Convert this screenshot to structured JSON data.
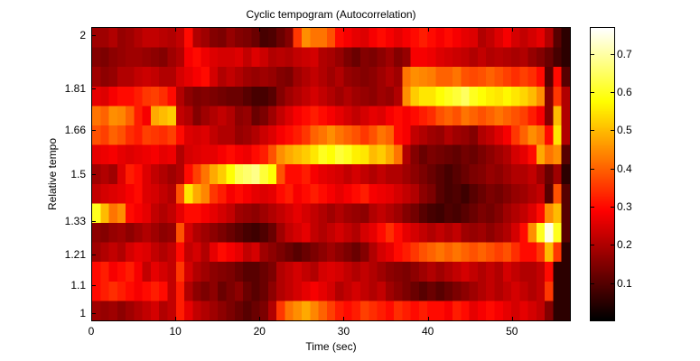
{
  "chart_data": {
    "type": "heatmap",
    "title": "Cyclic tempogram (Autocorrelation)",
    "xlabel": "Time (sec)",
    "ylabel": "Relative tempo",
    "xlim": [
      0,
      57
    ],
    "x_ticks": [
      0,
      10,
      20,
      30,
      40,
      50
    ],
    "y_ticks": [
      "1",
      "1.1",
      "1.21",
      "1.33",
      "1.5",
      "1.66",
      "1.81",
      "2"
    ],
    "y_tick_values": [
      1.0,
      1.1,
      1.21,
      1.33,
      1.5,
      1.66,
      1.81,
      2.0
    ],
    "ylim": [
      0.97,
      2.03
    ],
    "colormap": "hot",
    "colorbar": {
      "range": [
        0,
        0.77
      ],
      "ticks": [
        "0.1",
        "0.2",
        "0.3",
        "0.4",
        "0.5",
        "0.6",
        "0.7"
      ],
      "tick_values": [
        0.1,
        0.2,
        0.3,
        0.4,
        0.5,
        0.6,
        0.7
      ]
    },
    "grid": false,
    "n_rows": 15,
    "time_bin_sec": 1,
    "rows_top_to_bottom": [
      [
        0.18,
        0.18,
        0.2,
        0.17,
        0.18,
        0.2,
        0.22,
        0.22,
        0.21,
        0.2,
        0.22,
        0.3,
        0.2,
        0.18,
        0.15,
        0.14,
        0.17,
        0.15,
        0.14,
        0.12,
        0.08,
        0.09,
        0.12,
        0.15,
        0.35,
        0.45,
        0.42,
        0.42,
        0.38,
        0.3,
        0.28,
        0.26,
        0.25,
        0.28,
        0.3,
        0.28,
        0.26,
        0.28,
        0.3,
        0.32,
        0.3,
        0.28,
        0.3,
        0.28,
        0.26,
        0.25,
        0.2,
        0.22,
        0.25,
        0.28,
        0.24,
        0.22,
        0.24,
        0.26,
        0.2,
        0.1,
        0.05
      ],
      [
        0.15,
        0.14,
        0.16,
        0.17,
        0.18,
        0.18,
        0.17,
        0.16,
        0.15,
        0.18,
        0.2,
        0.28,
        0.3,
        0.27,
        0.25,
        0.24,
        0.24,
        0.25,
        0.22,
        0.25,
        0.23,
        0.2,
        0.21,
        0.2,
        0.22,
        0.23,
        0.24,
        0.2,
        0.19,
        0.17,
        0.14,
        0.12,
        0.15,
        0.14,
        0.16,
        0.18,
        0.15,
        0.17,
        0.28,
        0.28,
        0.27,
        0.25,
        0.24,
        0.23,
        0.22,
        0.2,
        0.22,
        0.2,
        0.21,
        0.2,
        0.19,
        0.2,
        0.17,
        0.15,
        0.12,
        0.08,
        0.05
      ],
      [
        0.18,
        0.16,
        0.17,
        0.2,
        0.2,
        0.22,
        0.23,
        0.22,
        0.2,
        0.2,
        0.24,
        0.26,
        0.28,
        0.3,
        0.24,
        0.2,
        0.22,
        0.2,
        0.18,
        0.17,
        0.18,
        0.17,
        0.15,
        0.14,
        0.18,
        0.2,
        0.22,
        0.2,
        0.18,
        0.2,
        0.17,
        0.16,
        0.15,
        0.16,
        0.18,
        0.2,
        0.18,
        0.42,
        0.45,
        0.44,
        0.43,
        0.4,
        0.4,
        0.42,
        0.38,
        0.37,
        0.38,
        0.4,
        0.38,
        0.36,
        0.34,
        0.36,
        0.34,
        0.3,
        0.1,
        0.3,
        0.1
      ],
      [
        0.26,
        0.25,
        0.28,
        0.3,
        0.3,
        0.32,
        0.35,
        0.36,
        0.34,
        0.3,
        0.2,
        0.16,
        0.14,
        0.15,
        0.14,
        0.13,
        0.12,
        0.12,
        0.1,
        0.08,
        0.08,
        0.1,
        0.15,
        0.18,
        0.2,
        0.22,
        0.24,
        0.22,
        0.2,
        0.18,
        0.2,
        0.18,
        0.17,
        0.16,
        0.18,
        0.17,
        0.2,
        0.45,
        0.52,
        0.55,
        0.55,
        0.58,
        0.6,
        0.62,
        0.65,
        0.6,
        0.58,
        0.56,
        0.55,
        0.57,
        0.55,
        0.53,
        0.5,
        0.45,
        0.15,
        0.35,
        0.2
      ],
      [
        0.42,
        0.4,
        0.45,
        0.44,
        0.4,
        0.32,
        0.28,
        0.48,
        0.5,
        0.52,
        0.22,
        0.2,
        0.15,
        0.18,
        0.2,
        0.22,
        0.2,
        0.16,
        0.17,
        0.12,
        0.14,
        0.18,
        0.22,
        0.25,
        0.28,
        0.3,
        0.32,
        0.3,
        0.28,
        0.26,
        0.24,
        0.22,
        0.24,
        0.26,
        0.25,
        0.28,
        0.3,
        0.28,
        0.3,
        0.32,
        0.34,
        0.38,
        0.4,
        0.38,
        0.42,
        0.4,
        0.38,
        0.4,
        0.42,
        0.4,
        0.38,
        0.36,
        0.32,
        0.28,
        0.15,
        0.5,
        0.2
      ],
      [
        0.38,
        0.36,
        0.4,
        0.38,
        0.34,
        0.32,
        0.36,
        0.35,
        0.34,
        0.36,
        0.3,
        0.25,
        0.24,
        0.25,
        0.22,
        0.2,
        0.2,
        0.17,
        0.18,
        0.2,
        0.23,
        0.25,
        0.28,
        0.3,
        0.32,
        0.35,
        0.4,
        0.42,
        0.45,
        0.42,
        0.4,
        0.38,
        0.35,
        0.38,
        0.42,
        0.4,
        0.3,
        0.28,
        0.22,
        0.2,
        0.18,
        0.17,
        0.2,
        0.18,
        0.17,
        0.15,
        0.2,
        0.22,
        0.25,
        0.28,
        0.35,
        0.4,
        0.45,
        0.42,
        0.3,
        0.55,
        0.2
      ],
      [
        0.26,
        0.27,
        0.28,
        0.26,
        0.25,
        0.26,
        0.27,
        0.28,
        0.26,
        0.27,
        0.2,
        0.24,
        0.25,
        0.26,
        0.26,
        0.28,
        0.3,
        0.28,
        0.27,
        0.3,
        0.32,
        0.38,
        0.45,
        0.48,
        0.5,
        0.52,
        0.55,
        0.6,
        0.58,
        0.62,
        0.6,
        0.56,
        0.55,
        0.5,
        0.52,
        0.48,
        0.42,
        0.2,
        0.15,
        0.12,
        0.14,
        0.13,
        0.12,
        0.11,
        0.13,
        0.12,
        0.14,
        0.16,
        0.18,
        0.2,
        0.24,
        0.26,
        0.3,
        0.48,
        0.42,
        0.45,
        0.1
      ],
      [
        0.18,
        0.2,
        0.18,
        0.25,
        0.32,
        0.3,
        0.25,
        0.22,
        0.2,
        0.18,
        0.2,
        0.3,
        0.36,
        0.42,
        0.48,
        0.52,
        0.58,
        0.64,
        0.66,
        0.68,
        0.62,
        0.58,
        0.38,
        0.3,
        0.3,
        0.32,
        0.28,
        0.26,
        0.25,
        0.24,
        0.22,
        0.24,
        0.22,
        0.2,
        0.22,
        0.2,
        0.2,
        0.18,
        0.16,
        0.14,
        0.12,
        0.1,
        0.08,
        0.1,
        0.12,
        0.14,
        0.15,
        0.17,
        0.16,
        0.18,
        0.2,
        0.2,
        0.22,
        0.18,
        0.12,
        0.18,
        0.05
      ],
      [
        0.22,
        0.24,
        0.25,
        0.26,
        0.28,
        0.3,
        0.25,
        0.24,
        0.22,
        0.2,
        0.38,
        0.55,
        0.48,
        0.44,
        0.35,
        0.32,
        0.28,
        0.3,
        0.28,
        0.26,
        0.25,
        0.26,
        0.3,
        0.32,
        0.28,
        0.3,
        0.32,
        0.3,
        0.28,
        0.26,
        0.28,
        0.3,
        0.32,
        0.28,
        0.27,
        0.26,
        0.24,
        0.22,
        0.2,
        0.16,
        0.14,
        0.1,
        0.08,
        0.09,
        0.07,
        0.1,
        0.12,
        0.14,
        0.13,
        0.15,
        0.17,
        0.18,
        0.2,
        0.22,
        0.1,
        0.38,
        0.1
      ],
      [
        0.6,
        0.5,
        0.42,
        0.45,
        0.3,
        0.28,
        0.26,
        0.22,
        0.2,
        0.22,
        0.26,
        0.3,
        0.3,
        0.28,
        0.26,
        0.24,
        0.22,
        0.18,
        0.17,
        0.16,
        0.18,
        0.2,
        0.22,
        0.24,
        0.26,
        0.24,
        0.22,
        0.2,
        0.18,
        0.2,
        0.18,
        0.17,
        0.16,
        0.2,
        0.22,
        0.2,
        0.18,
        0.15,
        0.13,
        0.1,
        0.08,
        0.07,
        0.09,
        0.08,
        0.1,
        0.12,
        0.14,
        0.13,
        0.15,
        0.18,
        0.2,
        0.22,
        0.25,
        0.3,
        0.45,
        0.5,
        0.1
      ],
      [
        0.16,
        0.15,
        0.17,
        0.18,
        0.16,
        0.18,
        0.2,
        0.18,
        0.16,
        0.17,
        0.38,
        0.24,
        0.2,
        0.18,
        0.16,
        0.14,
        0.12,
        0.1,
        0.08,
        0.07,
        0.09,
        0.12,
        0.18,
        0.22,
        0.24,
        0.26,
        0.22,
        0.2,
        0.22,
        0.24,
        0.22,
        0.2,
        0.24,
        0.26,
        0.3,
        0.34,
        0.3,
        0.26,
        0.24,
        0.22,
        0.2,
        0.22,
        0.2,
        0.22,
        0.18,
        0.17,
        0.18,
        0.16,
        0.18,
        0.2,
        0.24,
        0.3,
        0.45,
        0.6,
        0.75,
        0.6,
        0.1
      ],
      [
        0.18,
        0.2,
        0.22,
        0.2,
        0.24,
        0.26,
        0.25,
        0.22,
        0.2,
        0.22,
        0.3,
        0.22,
        0.24,
        0.2,
        0.26,
        0.3,
        0.28,
        0.26,
        0.22,
        0.24,
        0.18,
        0.16,
        0.14,
        0.12,
        0.1,
        0.12,
        0.14,
        0.16,
        0.18,
        0.16,
        0.14,
        0.12,
        0.15,
        0.2,
        0.24,
        0.26,
        0.3,
        0.32,
        0.35,
        0.38,
        0.4,
        0.42,
        0.4,
        0.42,
        0.4,
        0.38,
        0.4,
        0.38,
        0.36,
        0.38,
        0.34,
        0.3,
        0.3,
        0.35,
        0.5,
        0.35,
        0.05
      ],
      [
        0.3,
        0.32,
        0.28,
        0.3,
        0.32,
        0.28,
        0.22,
        0.26,
        0.24,
        0.22,
        0.35,
        0.24,
        0.2,
        0.18,
        0.16,
        0.15,
        0.14,
        0.12,
        0.1,
        0.1,
        0.12,
        0.14,
        0.2,
        0.22,
        0.24,
        0.22,
        0.2,
        0.24,
        0.25,
        0.24,
        0.22,
        0.2,
        0.22,
        0.2,
        0.18,
        0.16,
        0.15,
        0.14,
        0.16,
        0.18,
        0.2,
        0.18,
        0.2,
        0.22,
        0.24,
        0.22,
        0.2,
        0.22,
        0.2,
        0.24,
        0.22,
        0.2,
        0.2,
        0.22,
        0.3,
        0.05,
        0.05
      ],
      [
        0.3,
        0.32,
        0.34,
        0.32,
        0.3,
        0.28,
        0.3,
        0.32,
        0.3,
        0.22,
        0.32,
        0.2,
        0.16,
        0.14,
        0.16,
        0.12,
        0.14,
        0.16,
        0.12,
        0.1,
        0.12,
        0.16,
        0.2,
        0.22,
        0.24,
        0.26,
        0.28,
        0.26,
        0.24,
        0.2,
        0.22,
        0.24,
        0.22,
        0.2,
        0.22,
        0.18,
        0.16,
        0.14,
        0.12,
        0.1,
        0.12,
        0.1,
        0.12,
        0.14,
        0.16,
        0.18,
        0.2,
        0.22,
        0.2,
        0.22,
        0.24,
        0.22,
        0.2,
        0.22,
        0.35,
        0.05,
        0.05
      ],
      [
        0.18,
        0.17,
        0.18,
        0.16,
        0.18,
        0.2,
        0.22,
        0.24,
        0.2,
        0.22,
        0.32,
        0.26,
        0.22,
        0.2,
        0.18,
        0.16,
        0.14,
        0.12,
        0.1,
        0.12,
        0.14,
        0.2,
        0.35,
        0.42,
        0.45,
        0.48,
        0.44,
        0.4,
        0.36,
        0.32,
        0.3,
        0.32,
        0.36,
        0.34,
        0.32,
        0.3,
        0.34,
        0.32,
        0.3,
        0.32,
        0.3,
        0.3,
        0.28,
        0.32,
        0.3,
        0.26,
        0.28,
        0.3,
        0.28,
        0.26,
        0.24,
        0.26,
        0.24,
        0.22,
        0.15,
        0.05,
        0.05
      ]
    ]
  }
}
